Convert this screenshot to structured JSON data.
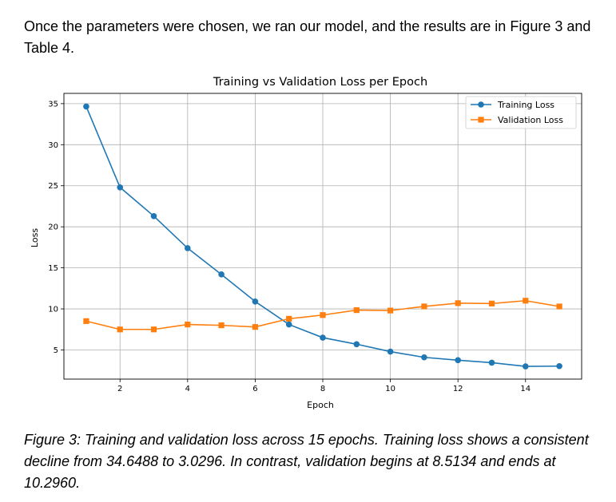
{
  "intro_text": "Once the parameters were chosen, we ran our model, and the results are in Figure 3 and Table 4.",
  "caption_text": "Figure 3: Training and validation loss across 15 epochs. Training loss shows a consistent decline from 34.6488 to 3.0296. In contrast, validation begins at 8.5134 and ends at 10.2960.",
  "chart_data": {
    "type": "line",
    "title": "Training vs Validation Loss per Epoch",
    "xlabel": "Epoch",
    "ylabel": "Loss",
    "x": [
      1,
      2,
      3,
      4,
      5,
      6,
      7,
      8,
      9,
      10,
      11,
      12,
      13,
      14,
      15
    ],
    "xlim": [
      0.34,
      15.66
    ],
    "ylim": [
      1.45,
      36.25
    ],
    "x_ticks": [
      2,
      4,
      6,
      8,
      10,
      12,
      14
    ],
    "y_ticks": [
      5,
      10,
      15,
      20,
      25,
      30,
      35
    ],
    "grid": true,
    "legend_position": "top-right",
    "series": [
      {
        "name": "Training Loss",
        "marker": "circle",
        "color": "#1f77b4",
        "values": [
          34.6488,
          24.8,
          21.3,
          17.4,
          14.2,
          10.9,
          8.1,
          6.5,
          5.7,
          4.8,
          4.1,
          3.75,
          3.45,
          3.0,
          3.0296
        ]
      },
      {
        "name": "Validation Loss",
        "marker": "square",
        "color": "#ff7f0e",
        "values": [
          8.5134,
          7.5,
          7.5,
          8.1,
          8.0,
          7.8,
          8.8,
          9.25,
          9.85,
          9.8,
          10.3,
          10.7,
          10.65,
          11.0,
          10.296
        ]
      }
    ]
  }
}
